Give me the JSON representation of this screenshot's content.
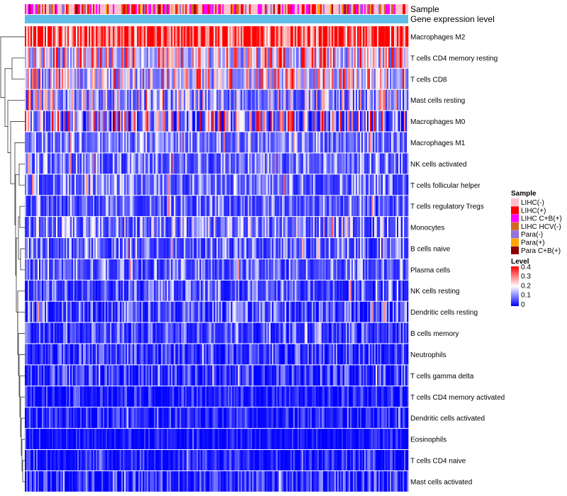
{
  "chart_data": {
    "type": "heatmap",
    "title": "",
    "annotations": [
      {
        "label": "Sample"
      },
      {
        "label": "Gene expression level"
      }
    ],
    "rows": [
      {
        "name": "Macrophages M2",
        "mean": 0.3,
        "spread": 0.12
      },
      {
        "name": "T cells CD4 memory resting",
        "mean": 0.14,
        "spread": 0.1
      },
      {
        "name": "T cells CD8",
        "mean": 0.12,
        "spread": 0.09
      },
      {
        "name": "Mast cells resting",
        "mean": 0.08,
        "spread": 0.08
      },
      {
        "name": "Macrophages M0",
        "mean": 0.08,
        "spread": 0.12
      },
      {
        "name": "Macrophages M1",
        "mean": 0.07,
        "spread": 0.05
      },
      {
        "name": "NK cells activated",
        "mean": 0.06,
        "spread": 0.05
      },
      {
        "name": "T cells follicular helper",
        "mean": 0.06,
        "spread": 0.05
      },
      {
        "name": "T cells regulatory  Tregs",
        "mean": 0.05,
        "spread": 0.05
      },
      {
        "name": "Monocytes",
        "mean": 0.06,
        "spread": 0.06
      },
      {
        "name": "B cells naive",
        "mean": 0.05,
        "spread": 0.05
      },
      {
        "name": "Plasma cells",
        "mean": 0.05,
        "spread": 0.05
      },
      {
        "name": "NK cells resting",
        "mean": 0.04,
        "spread": 0.05
      },
      {
        "name": "Dendritic cells resting",
        "mean": 0.03,
        "spread": 0.05
      },
      {
        "name": "B cells memory",
        "mean": 0.03,
        "spread": 0.04
      },
      {
        "name": "Neutrophils",
        "mean": 0.02,
        "spread": 0.04
      },
      {
        "name": "T cells gamma delta",
        "mean": 0.015,
        "spread": 0.04
      },
      {
        "name": "T cells CD4 memory activated",
        "mean": 0.01,
        "spread": 0.03
      },
      {
        "name": "Dendritic cells activated",
        "mean": 0.01,
        "spread": 0.03
      },
      {
        "name": "Eosinophils",
        "mean": 0.005,
        "spread": 0.02
      },
      {
        "name": "T cells CD4 naive",
        "mean": 0.01,
        "spread": 0.03
      },
      {
        "name": "Mast cells activated",
        "mean": 0.01,
        "spread": 0.04
      }
    ],
    "n_samples": 270,
    "sample_legend": {
      "title": "Sample",
      "entries": [
        {
          "label": "LIHC(-)",
          "color": "#ffc0cb"
        },
        {
          "label": "LIHC(+)",
          "color": "#ff0000"
        },
        {
          "label": "LIHC C+B(+)",
          "color": "#ff00ff"
        },
        {
          "label": "LIHC HCV(-)",
          "color": "#d2691e"
        },
        {
          "label": "Para(-)",
          "color": "#9370db"
        },
        {
          "label": "Para(+)",
          "color": "#ffa500"
        },
        {
          "label": "Para C+B(+)",
          "color": "#8b0000"
        }
      ]
    },
    "level_legend": {
      "title": "Level",
      "ticks": [
        "0.4",
        "0.3",
        "0.2",
        "0.1",
        "0"
      ],
      "range": [
        0,
        0.4
      ],
      "colors": [
        "#0000ff",
        "#ffffff",
        "#ff0000"
      ]
    },
    "expression_bar_color": "#5dbde6"
  }
}
